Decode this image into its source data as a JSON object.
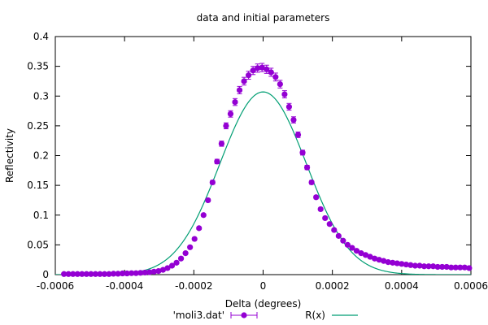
{
  "chart_data": {
    "type": "scatter",
    "title": "data and initial parameters",
    "xlabel": "Delta (degrees)",
    "ylabel": "Reflectivity",
    "xlim": [
      -0.0006,
      0.0006
    ],
    "ylim": [
      0,
      0.4
    ],
    "x_ticks": [
      -0.0006,
      -0.0004,
      -0.0002,
      0,
      0.0002,
      0.0004,
      0.0006
    ],
    "x_tick_labels": [
      "-0.0006",
      "-0.0004",
      "-0.0002",
      "0",
      "0.0002",
      "0.0004",
      "0.0006"
    ],
    "y_ticks": [
      0,
      0.05,
      0.1,
      0.15,
      0.2,
      0.25,
      0.3,
      0.35,
      0.4
    ],
    "y_tick_labels": [
      "0",
      "0.05",
      "0.1",
      "0.15",
      "0.2",
      "0.25",
      "0.3",
      "0.35",
      "0.4"
    ],
    "grid": false,
    "legend_position": "bottom",
    "series": [
      {
        "name": "'moli3.dat'",
        "style": "points-with-errorbars",
        "color": "#9400d3",
        "x": [
          -0.000575,
          -0.000562,
          -0.000549,
          -0.000536,
          -0.000523,
          -0.00051,
          -0.000497,
          -0.000484,
          -0.000471,
          -0.000458,
          -0.000445,
          -0.000432,
          -0.000419,
          -0.000406,
          -0.000393,
          -0.00038,
          -0.000367,
          -0.000354,
          -0.000341,
          -0.000328,
          -0.000315,
          -0.000302,
          -0.000289,
          -0.000276,
          -0.000263,
          -0.00025,
          -0.000237,
          -0.000224,
          -0.000211,
          -0.000198,
          -0.000185,
          -0.000172,
          -0.000159,
          -0.000146,
          -0.000133,
          -0.00012,
          -0.000107,
          -9.4e-05,
          -8.1e-05,
          -6.8e-05,
          -5.5e-05,
          -4.2e-05,
          -2.9e-05,
          -1.6e-05,
          -3e-06,
          1e-05,
          2.3e-05,
          3.6e-05,
          4.9e-05,
          6.2e-05,
          7.5e-05,
          8.8e-05,
          0.000101,
          0.000114,
          0.000127,
          0.00014,
          0.000153,
          0.000166,
          0.000179,
          0.000192,
          0.000205,
          0.000218,
          0.000231,
          0.000244,
          0.000257,
          0.00027,
          0.000283,
          0.000296,
          0.000309,
          0.000322,
          0.000335,
          0.000348,
          0.000361,
          0.000374,
          0.000387,
          0.0004,
          0.000413,
          0.000426,
          0.000439,
          0.000452,
          0.000465,
          0.000478,
          0.000491,
          0.000504,
          0.000517,
          0.00053,
          0.000543,
          0.000556,
          0.000569,
          0.000582,
          0.000595
        ],
        "y": [
          0.001,
          0.001,
          0.001,
          0.001,
          0.001,
          0.001,
          0.001,
          0.001,
          0.001,
          0.001,
          0.001,
          0.0015,
          0.0015,
          0.002,
          0.002,
          0.0025,
          0.0025,
          0.003,
          0.0035,
          0.004,
          0.005,
          0.006,
          0.008,
          0.011,
          0.015,
          0.02,
          0.027,
          0.036,
          0.046,
          0.06,
          0.078,
          0.1,
          0.125,
          0.155,
          0.19,
          0.22,
          0.25,
          0.27,
          0.29,
          0.31,
          0.325,
          0.335,
          0.343,
          0.347,
          0.348,
          0.345,
          0.34,
          0.332,
          0.32,
          0.303,
          0.282,
          0.26,
          0.235,
          0.205,
          0.18,
          0.155,
          0.13,
          0.11,
          0.095,
          0.085,
          0.075,
          0.065,
          0.057,
          0.05,
          0.045,
          0.04,
          0.036,
          0.033,
          0.03,
          0.027,
          0.025,
          0.023,
          0.021,
          0.02,
          0.019,
          0.018,
          0.017,
          0.016,
          0.015,
          0.015,
          0.014,
          0.014,
          0.014,
          0.013,
          0.013,
          0.013,
          0.012,
          0.012,
          0.012,
          0.012,
          0.011
        ],
        "yerr_note": "small symmetric error bars on each point"
      },
      {
        "name": "R(x)",
        "style": "line",
        "color": "#009e73",
        "function": "gaussian",
        "amplitude": 0.307,
        "center": 0,
        "sigma": 0.000125
      }
    ]
  }
}
